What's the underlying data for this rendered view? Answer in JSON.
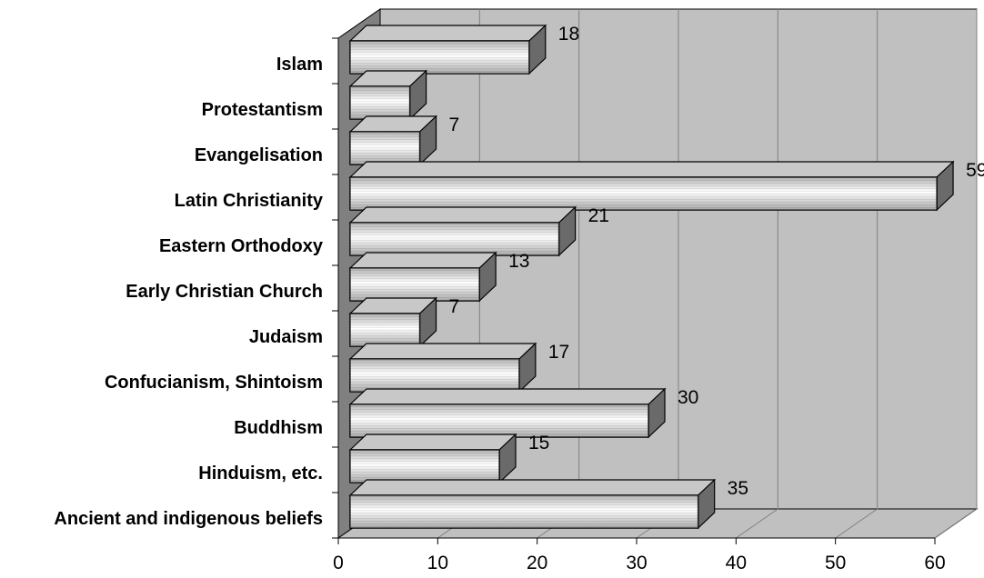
{
  "chart_data": {
    "type": "bar",
    "orientation": "horizontal",
    "three_d": true,
    "categories": [
      "Islam",
      "Protestantism",
      "Evangelisation",
      "Latin Christianity",
      "Eastern Orthodoxy",
      "Early Christian Church",
      "Judaism",
      "Confucianism, Shintoism",
      "Buddhism",
      "Hinduism, etc.",
      "Ancient and indigenous beliefs"
    ],
    "values": [
      18,
      6,
      7,
      59,
      21,
      13,
      7,
      17,
      30,
      15,
      35
    ],
    "data_labels": [
      "18",
      "",
      "7",
      "59",
      "21",
      "13",
      "7",
      "17",
      "30",
      "15",
      "35"
    ],
    "title": "",
    "xlabel": "",
    "ylabel": "",
    "xlim": [
      0,
      60
    ],
    "x_ticks": [
      "0",
      "10",
      "20",
      "30",
      "40",
      "50",
      "60"
    ],
    "grid": "vertical",
    "legend": "none",
    "colors": {
      "wall": "#c0c0c0",
      "side_wall": "#808080",
      "floor": "#c0c0c0",
      "grid": "#808080",
      "bar_front_light": "#ffffff",
      "bar_front_dark": "#9a9a9a",
      "bar_top": "#c8c8c8",
      "bar_side": "#6a6a6a"
    }
  }
}
